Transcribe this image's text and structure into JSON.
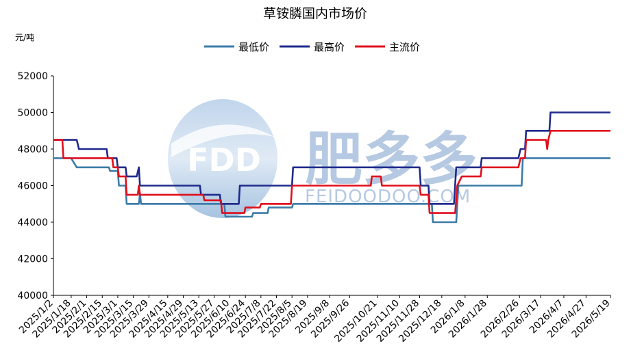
{
  "chart_data": {
    "type": "line",
    "title": "草铵膦国内市场价",
    "ylabel": "元/吨",
    "ylim": [
      40000,
      52000
    ],
    "yticks": [
      40000,
      42000,
      44000,
      46000,
      48000,
      50000,
      52000
    ],
    "x_tick_labels": [
      "2025/1/2",
      "2025/1/18",
      "2025/2/1",
      "2025/2/15",
      "2025/3/1",
      "2025/3/15",
      "2025/3/29",
      "2025/4/15",
      "2025/4/29",
      "2025/5/13",
      "2025/5/27",
      "2025/6/10",
      "2025/6/24",
      "2025/7/8",
      "2025/7/22",
      "2025/8/5",
      "2025/8/19",
      "2025/9/8",
      "2025/9/26",
      "2025/10/21",
      "2025/11/10",
      "2025/11/28",
      "2025/12/18",
      "2026/1/8",
      "2026/1/28",
      "2026/2/26",
      "2026/3/17",
      "2026/4/7",
      "2026/4/27",
      "2026/5/19"
    ],
    "grid": false,
    "legend_position": "top",
    "series": [
      {
        "name": "最低价",
        "color": "#3B7BA8",
        "points": [
          [
            "2025/1/2",
            47500
          ],
          [
            "2025/1/18",
            47500
          ],
          [
            "2025/1/23",
            47000
          ],
          [
            "2025/2/21",
            47000
          ],
          [
            "2025/2/22",
            46800
          ],
          [
            "2025/3/1",
            46800
          ],
          [
            "2025/3/2",
            46000
          ],
          [
            "2025/3/8",
            46000
          ],
          [
            "2025/3/9",
            45000
          ],
          [
            "2025/3/20",
            45000
          ],
          [
            "2025/3/21",
            45600
          ],
          [
            "2025/3/22",
            45000
          ],
          [
            "2025/6/5",
            45000
          ],
          [
            "2025/6/6",
            44300
          ],
          [
            "2025/6/30",
            44300
          ],
          [
            "2025/7/1",
            44500
          ],
          [
            "2025/7/14",
            44500
          ],
          [
            "2025/7/15",
            44800
          ],
          [
            "2025/8/5",
            44800
          ],
          [
            "2025/8/6",
            45000
          ],
          [
            "2025/12/9",
            45000
          ],
          [
            "2025/12/10",
            44000
          ],
          [
            "2025/12/31",
            44000
          ],
          [
            "2026/1/2",
            46000
          ],
          [
            "2026/2/28",
            46000
          ],
          [
            "2026/3/1",
            47500
          ],
          [
            "2026/5/19",
            47500
          ]
        ]
      },
      {
        "name": "最高价",
        "color": "#1F2A8C",
        "points": [
          [
            "2025/1/2",
            48500
          ],
          [
            "2025/1/23",
            48500
          ],
          [
            "2025/1/25",
            48000
          ],
          [
            "2025/2/19",
            48000
          ],
          [
            "2025/2/20",
            47500
          ],
          [
            "2025/2/28",
            47500
          ],
          [
            "2025/3/1",
            47000
          ],
          [
            "2025/3/8",
            47000
          ],
          [
            "2025/3/9",
            46500
          ],
          [
            "2025/3/18",
            46500
          ],
          [
            "2025/3/20",
            47000
          ],
          [
            "2025/3/21",
            46000
          ],
          [
            "2025/5/14",
            46000
          ],
          [
            "2025/5/15",
            45500
          ],
          [
            "2025/6/1",
            45500
          ],
          [
            "2025/6/2",
            45000
          ],
          [
            "2025/6/18",
            45000
          ],
          [
            "2025/6/19",
            46000
          ],
          [
            "2025/8/5",
            46000
          ],
          [
            "2025/8/6",
            47000
          ],
          [
            "2025/11/28",
            47000
          ],
          [
            "2025/11/29",
            46000
          ],
          [
            "2025/12/6",
            46000
          ],
          [
            "2025/12/7",
            45000
          ],
          [
            "2025/12/29",
            45000
          ],
          [
            "2025/12/31",
            47000
          ],
          [
            "2026/1/22",
            47000
          ],
          [
            "2026/1/23",
            47500
          ],
          [
            "2026/2/25",
            47500
          ],
          [
            "2026/2/27",
            48000
          ],
          [
            "2026/3/3",
            48000
          ],
          [
            "2026/3/4",
            49000
          ],
          [
            "2026/3/25",
            49000
          ],
          [
            "2026/3/26",
            50000
          ],
          [
            "2026/5/19",
            50000
          ]
        ]
      },
      {
        "name": "主流价",
        "color": "#E00F1C",
        "points": [
          [
            "2025/1/2",
            48500
          ],
          [
            "2025/1/10",
            48500
          ],
          [
            "2025/1/11",
            47500
          ],
          [
            "2025/2/24",
            47500
          ],
          [
            "2025/2/25",
            47000
          ],
          [
            "2025/3/1",
            47000
          ],
          [
            "2025/3/2",
            46500
          ],
          [
            "2025/3/8",
            46500
          ],
          [
            "2025/3/9",
            45500
          ],
          [
            "2025/3/19",
            45500
          ],
          [
            "2025/3/20",
            46000
          ],
          [
            "2025/3/21",
            45500
          ],
          [
            "2025/5/17",
            45500
          ],
          [
            "2025/5/18",
            45200
          ],
          [
            "2025/6/2",
            45200
          ],
          [
            "2025/6/3",
            44500
          ],
          [
            "2025/6/23",
            44500
          ],
          [
            "2025/6/24",
            44800
          ],
          [
            "2025/7/7",
            44800
          ],
          [
            "2025/7/8",
            45000
          ],
          [
            "2025/8/4",
            45000
          ],
          [
            "2025/8/5",
            46000
          ],
          [
            "2025/10/15",
            46000
          ],
          [
            "2025/10/16",
            46500
          ],
          [
            "2025/10/24",
            46500
          ],
          [
            "2025/10/25",
            46000
          ],
          [
            "2025/11/28",
            46000
          ],
          [
            "2025/11/29",
            45500
          ],
          [
            "2025/12/6",
            45500
          ],
          [
            "2025/12/7",
            44500
          ],
          [
            "2025/12/30",
            44500
          ],
          [
            "2026/1/1",
            46000
          ],
          [
            "2026/1/5",
            46500
          ],
          [
            "2026/1/22",
            46500
          ],
          [
            "2026/1/23",
            47000
          ],
          [
            "2026/2/25",
            47000
          ],
          [
            "2026/2/27",
            47500
          ],
          [
            "2026/3/3",
            47500
          ],
          [
            "2026/3/4",
            48500
          ],
          [
            "2026/3/22",
            48500
          ],
          [
            "2026/3/23",
            48000
          ],
          [
            "2026/3/24",
            48500
          ],
          [
            "2026/3/26",
            49000
          ],
          [
            "2026/5/19",
            49000
          ]
        ]
      }
    ]
  },
  "watermark": {
    "logo_text": "FDD",
    "brand_cn": "肥多多",
    "brand_en": "FEIDOODOO.COM"
  }
}
